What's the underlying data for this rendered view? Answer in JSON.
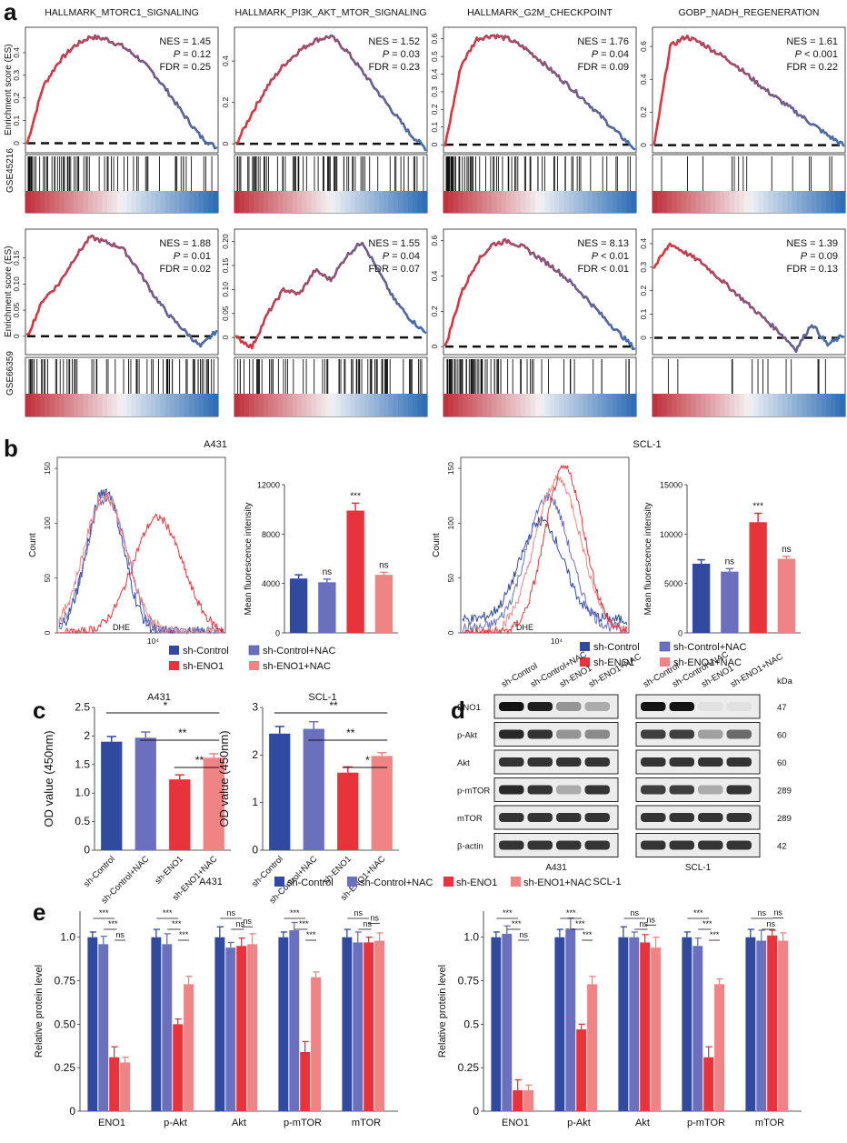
{
  "panel_labels": {
    "a": "a",
    "b": "b",
    "c": "c",
    "d": "d",
    "e": "e"
  },
  "gsea": {
    "ylabel": "Enrichment score (ES)",
    "rows": [
      {
        "dataset": "GSE45216",
        "plots": [
          {
            "title": "HALLMARK_MTORC1_SIGNALING",
            "nes": "NES = 1.45",
            "p_prefix": "P",
            "p": " = 0.12",
            "fdr": "FDR = 0.25",
            "yticks": [
              "0",
              "0.1",
              "0.2",
              "0.3",
              "0.4"
            ],
            "ymax": 0.5,
            "peak": 0.47,
            "shape": "early",
            "curve": [
              0,
              0.25,
              0.36,
              0.43,
              0.47,
              0.46,
              0.43,
              0.38,
              0.31,
              0.22,
              0.12,
              0.03,
              -0.02
            ]
          },
          {
            "title": "HALLMARK_PI3K_AKT_MTOR_SIGNALING",
            "nes": "NES = 1.52",
            "p_prefix": "P",
            "p": " = 0.03",
            "fdr": "FDR = 0.23",
            "yticks": [
              "0",
              "0.2",
              "0.4"
            ],
            "ymax": 0.55,
            "peak": 0.52,
            "shape": "mid",
            "curve": [
              0,
              0.15,
              0.28,
              0.38,
              0.45,
              0.5,
              0.52,
              0.45,
              0.35,
              0.25,
              0.15,
              0.05,
              -0.02
            ]
          },
          {
            "title": "HALLMARK_G2M_CHECKPOINT",
            "nes": "NES = 1.76",
            "p_prefix": "P",
            "p": " = 0.04",
            "fdr": "FDR = 0.09",
            "yticks": [
              "0",
              "0.1",
              "0.2",
              "0.3",
              "0.4",
              "0.5",
              "0.6"
            ],
            "ymax": 0.65,
            "peak": 0.62,
            "shape": "early",
            "curve": [
              0,
              0.45,
              0.6,
              0.62,
              0.6,
              0.55,
              0.48,
              0.4,
              0.32,
              0.24,
              0.15,
              0.06,
              -0.02
            ]
          },
          {
            "title": "GOBP_NADH_REGENERATION",
            "nes": "NES = 1.61",
            "p_prefix": "P",
            "p": " < 0.001",
            "fdr": "FDR = 0.22",
            "yticks": [
              "0",
              "0.2",
              "0.4",
              "0.6"
            ],
            "ymax": 0.7,
            "peak": 0.66,
            "shape": "early",
            "curve": [
              0,
              0.6,
              0.66,
              0.62,
              0.56,
              0.5,
              0.42,
              0.34,
              0.27,
              0.2,
              0.13,
              0.06,
              0
            ]
          }
        ]
      },
      {
        "dataset": "GSE66359",
        "plots": [
          {
            "title": "",
            "nes": "NES = 1.88",
            "p_prefix": "P",
            "p": " = 0.01",
            "fdr": "FDR = 0.02",
            "yticks": [
              "0",
              "0.05",
              "0.10",
              "0.15"
            ],
            "ymax": 0.2,
            "peak": 0.19,
            "shape": "mid",
            "curve": [
              0,
              0.07,
              0.1,
              0.15,
              0.19,
              0.18,
              0.17,
              0.13,
              0.08,
              0.04,
              0.01,
              -0.02,
              0.01
            ]
          },
          {
            "title": "",
            "nes": "NES = 1.55",
            "p_prefix": "P",
            "p": " = 0.04",
            "fdr": "FDR = 0.07",
            "yticks": [
              "0",
              "0.05",
              "0.10",
              "0.15",
              "0.20"
            ],
            "ymax": 0.22,
            "peak": 0.2,
            "shape": "mid",
            "curve": [
              0,
              -0.02,
              0.05,
              0.1,
              0.09,
              0.14,
              0.12,
              0.17,
              0.2,
              0.14,
              0.08,
              0.04,
              0.01
            ]
          },
          {
            "title": "",
            "nes": "NES = 8.13",
            "p_prefix": "P",
            "p": " < 0.01",
            "fdr": "FDR < 0.01",
            "yticks": [
              "0",
              "0.2",
              "0.4",
              "0.6"
            ],
            "ymax": 0.65,
            "peak": 0.6,
            "shape": "early",
            "curve": [
              0,
              0.3,
              0.48,
              0.58,
              0.6,
              0.56,
              0.5,
              0.44,
              0.36,
              0.27,
              0.17,
              0.08,
              -0.01
            ]
          },
          {
            "title": "",
            "nes": "NES = 1.39",
            "p_prefix": "P",
            "p": " = 0.09",
            "fdr": "FDR = 0.13",
            "yticks": [
              "0",
              "0.1",
              "0.2",
              "0.3",
              "0.4"
            ],
            "ymax": 0.45,
            "peak": 0.4,
            "shape": "early",
            "curve": [
              0.3,
              0.4,
              0.36,
              0.32,
              0.26,
              0.2,
              0.14,
              0.08,
              0.02,
              -0.05,
              0.06,
              -0.03,
              0.01
            ]
          }
        ]
      }
    ]
  },
  "chart_data": [
    {
      "type": "bar",
      "title": "A431",
      "xlabel": "",
      "ylabel": "Mean fluorescence intensity",
      "categories": [
        "sh-Control",
        "sh-Control+NAC",
        "sh-ENO1",
        "sh-ENO1+NAC"
      ],
      "values": [
        4400,
        4100,
        9900,
        4700
      ],
      "errors": [
        300,
        250,
        600,
        200
      ],
      "ylim": [
        0,
        12000
      ],
      "yticks": [
        "0",
        "4000",
        "8000",
        "12000"
      ],
      "sig": [
        "",
        "ns",
        "***",
        "ns"
      ]
    },
    {
      "type": "bar",
      "title": "SCL-1",
      "xlabel": "",
      "ylabel": "Mean fluorescence intensity",
      "categories": [
        "sh-Control",
        "sh-Control+NAC",
        "sh-ENO1",
        "sh-ENO1+NAC"
      ],
      "values": [
        7000,
        6200,
        11200,
        7500
      ],
      "errors": [
        400,
        300,
        900,
        250
      ],
      "ylim": [
        0,
        15000
      ],
      "yticks": [
        "0",
        "5000",
        "10000",
        "15000"
      ],
      "sig": [
        "",
        "ns",
        "***",
        "ns"
      ]
    },
    {
      "type": "bar",
      "title": "A431",
      "xlabel": "",
      "ylabel": "OD value (450nm)",
      "categories": [
        "sh-Control",
        "sh-Control+NAC",
        "sh-ENO1",
        "sh-ENO1+NAC"
      ],
      "values": [
        1.9,
        1.97,
        1.24,
        1.62
      ],
      "errors": [
        0.09,
        0.1,
        0.08,
        0.07
      ],
      "ylim": [
        0,
        2.5
      ],
      "yticks": [
        "0",
        "0.5",
        "1.0",
        "1.5",
        "2",
        "2.5"
      ],
      "comparisons": [
        {
          "from": 0,
          "to": 3,
          "label": "*"
        },
        {
          "from": 1,
          "to": 3,
          "label": "**"
        },
        {
          "from": 2,
          "to": 3,
          "label": "**"
        }
      ]
    },
    {
      "type": "bar",
      "title": "SCL-1",
      "xlabel": "",
      "ylabel": "OD value (450nm)",
      "categories": [
        "sh-Control",
        "sh-Control+NAC",
        "sh-ENO1",
        "sh-ENO1+NAC"
      ],
      "values": [
        2.45,
        2.55,
        1.63,
        1.98
      ],
      "errors": [
        0.15,
        0.15,
        0.12,
        0.07
      ],
      "ylim": [
        0,
        3
      ],
      "yticks": [
        "0",
        "1",
        "2",
        "3"
      ],
      "comparisons": [
        {
          "from": 0,
          "to": 3,
          "label": "**"
        },
        {
          "from": 1,
          "to": 3,
          "label": "**"
        },
        {
          "from": 2,
          "to": 3,
          "label": "*"
        }
      ]
    },
    {
      "type": "bar",
      "title": "A431",
      "xlabel": "",
      "ylabel": "Relative protein level",
      "categories": [
        "ENO1",
        "p-Akt",
        "Akt",
        "p-mTOR",
        "mTOR"
      ],
      "series": [
        {
          "name": "sh-Control",
          "values": [
            1.0,
            1.0,
            1.0,
            1.0,
            1.0
          ],
          "errors": [
            0.05,
            0.04,
            0.02,
            0.03,
            0.03
          ]
        },
        {
          "name": "sh-Control+NAC",
          "values": [
            0.96,
            0.96,
            0.94,
            1.04,
            0.97
          ]
        },
        {
          "name": "sh-ENO1",
          "values": [
            0.31,
            0.5,
            0.95,
            0.34,
            0.97
          ]
        },
        {
          "name": "sh-ENO1+NAC",
          "values": [
            0.28,
            0.73,
            0.96,
            0.77,
            0.98
          ]
        }
      ],
      "ylim": [
        0,
        1.15
      ],
      "yticks": [
        "0",
        "0.25",
        "0.50",
        "0.75",
        "1.0"
      ],
      "sig_top": [
        "***",
        "***",
        "ns",
        "***",
        "ns"
      ],
      "sig_mid": [
        "***",
        "***",
        "ns",
        "***",
        "ns"
      ],
      "sig_low": [
        "ns",
        "***",
        "ns",
        "***",
        "ns"
      ]
    },
    {
      "type": "bar",
      "title": "SCL-1",
      "xlabel": "",
      "ylabel": "Relative protein level",
      "categories": [
        "ENO1",
        "p-Akt",
        "Akt",
        "p-mTOR",
        "mTOR"
      ],
      "series": [
        {
          "name": "sh-Control",
          "values": [
            1.0,
            1.0,
            1.0,
            1.0,
            1.0
          ]
        },
        {
          "name": "sh-Control+NAC",
          "values": [
            1.02,
            1.05,
            1.0,
            0.95,
            0.98
          ]
        },
        {
          "name": "sh-ENO1",
          "values": [
            0.12,
            0.47,
            0.97,
            0.31,
            1.01
          ]
        },
        {
          "name": "sh-ENO1+NAC",
          "values": [
            0.12,
            0.73,
            0.94,
            0.73,
            0.98
          ]
        }
      ],
      "ylim": [
        0,
        1.15
      ],
      "yticks": [
        "0",
        "0.25",
        "0.5",
        "0.75",
        "1.0"
      ],
      "sig_top": [
        "***",
        "***",
        "ns",
        "***",
        "ns"
      ],
      "sig_mid": [
        "***",
        "***",
        "ns",
        "***",
        "ns"
      ],
      "sig_low": [
        "ns",
        "***",
        "ns",
        "***",
        "ns"
      ]
    }
  ],
  "flow": {
    "xlabel": "DHE",
    "ylabel": "Count",
    "tick": "10⁴",
    "yticks_a": [
      "0",
      "50",
      "100",
      "150"
    ],
    "yticks_s": [
      "0",
      "50",
      "100",
      "150"
    ],
    "titles": [
      "A431",
      "SCL-1"
    ]
  },
  "legend_groups": [
    "sh-Control",
    "sh-Control+NAC",
    "sh-ENO1",
    "sh-ENO1+NAC"
  ],
  "colors": {
    "c1": "#2f4a9e",
    "c2": "#6a70bd",
    "c3": "#e8333a",
    "c4": "#f08484",
    "red": "#d23a3a",
    "blue": "#3e6fb0"
  },
  "blot": {
    "headers": [
      "sh-Control",
      "sh-Control+NAC",
      "sh-ENO1",
      "sh-ENO1+NAC"
    ],
    "kda": "kDa",
    "proteins": [
      {
        "name": "ENO1",
        "kda": "47",
        "a": [
          1,
          0.95,
          0.4,
          0.3
        ],
        "s": [
          1,
          1,
          0.05,
          0.05
        ]
      },
      {
        "name": "p-Akt",
        "kda": "60",
        "a": [
          0.9,
          0.85,
          0.4,
          0.45
        ],
        "s": [
          0.8,
          0.8,
          0.35,
          0.6
        ]
      },
      {
        "name": "Akt",
        "kda": "60",
        "a": [
          0.85,
          0.85,
          0.85,
          0.85
        ],
        "s": [
          0.85,
          0.85,
          0.85,
          0.85
        ]
      },
      {
        "name": "p-mTOR",
        "kda": "289",
        "a": [
          0.9,
          0.85,
          0.3,
          0.85
        ],
        "s": [
          0.8,
          0.8,
          0.3,
          0.85
        ]
      },
      {
        "name": "mTOR",
        "kda": "289",
        "a": [
          0.85,
          0.85,
          0.85,
          0.85
        ],
        "s": [
          0.85,
          0.85,
          0.85,
          0.85
        ]
      },
      {
        "name": "β-actin",
        "kda": "42",
        "a": [
          0.85,
          0.85,
          0.85,
          0.85
        ],
        "s": [
          0.85,
          0.85,
          0.85,
          0.85
        ]
      }
    ],
    "cell_lines": [
      "A431",
      "SCL-1"
    ]
  }
}
